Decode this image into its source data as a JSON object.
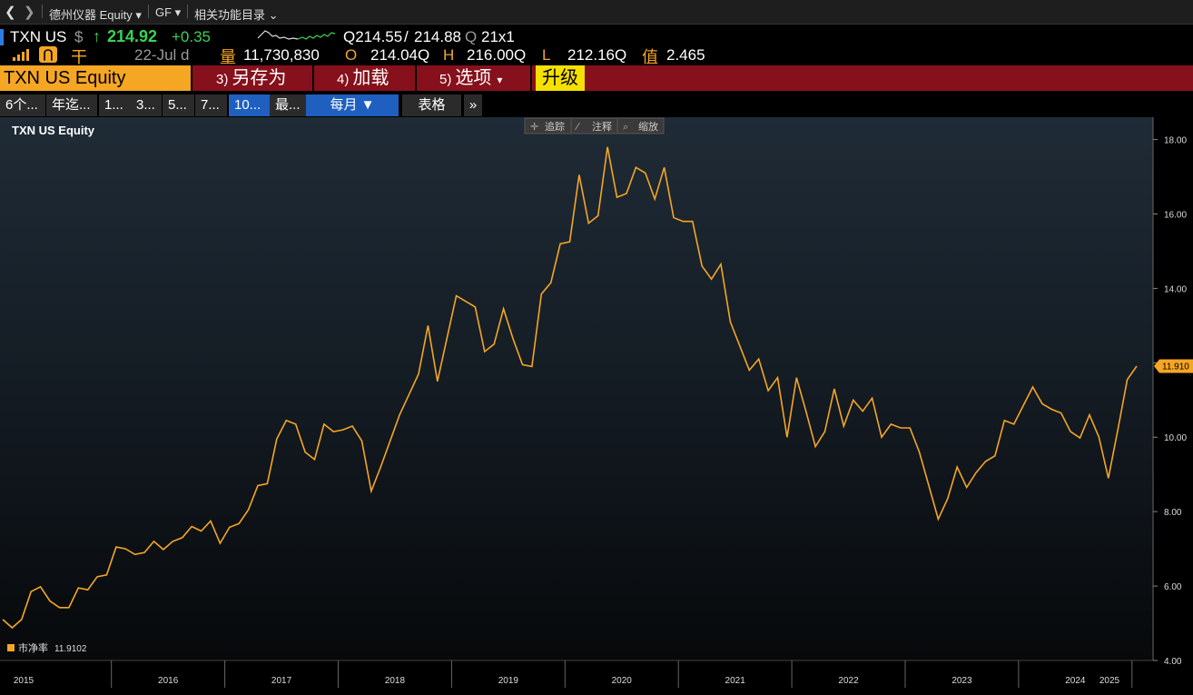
{
  "nav": {
    "title": "德州仪器 Equity",
    "fund": "GF",
    "menu": "相关功能目录"
  },
  "quote": {
    "ticker": "TXN US",
    "currency": "$",
    "arrow": "↑",
    "last": "214.92",
    "change": "+0.35",
    "bid": "Q214.55",
    "slash": "/",
    "ask": "214.88",
    "ask_flag": "Q",
    "size": "21x1",
    "date_label": "22-Jul d",
    "vol_label": "量",
    "volume": "11,730,830",
    "open_label": "O",
    "open": "214.04Q",
    "high_label": "H",
    "high": "216.00Q",
    "low_label": "L",
    "low": "212.16Q",
    "value_label": "值",
    "value": "2.465",
    "currency_glyph": "干",
    "accent": "#f5a623",
    "up_color": "#39d353"
  },
  "funcbar": {
    "security": "TXN US Equity",
    "b3_num": "3)",
    "b3_label": "另存为",
    "b4_num": "4)",
    "b4_label": "加载",
    "b5_num": "5)",
    "b5_label": "选项",
    "upgrade": "升级"
  },
  "tabs": {
    "items": [
      "6个...",
      "年迄...",
      "1...",
      "3...",
      "5...",
      "7...",
      "10...",
      "最..."
    ],
    "freq": "每月 ▼",
    "table": "表格",
    "more": "»",
    "active_index": 6
  },
  "chart_tools": {
    "track": "追踪",
    "annotate": "注释",
    "zoom": "缩放"
  },
  "legend": {
    "label": "市净率",
    "value": "11.9102"
  },
  "chart_data": {
    "type": "line",
    "title": "TXN US Equity",
    "series": [
      {
        "name": "市净率",
        "color": "#f5a623",
        "values": [
          5.1,
          4.88,
          5.1,
          5.85,
          5.98,
          5.6,
          5.42,
          5.42,
          5.95,
          5.9,
          6.25,
          6.3,
          7.05,
          7.0,
          6.85,
          6.9,
          7.2,
          6.98,
          7.2,
          7.3,
          7.6,
          7.48,
          7.75,
          7.15,
          7.58,
          7.68,
          8.05,
          8.7,
          8.75,
          9.95,
          10.45,
          10.35,
          9.6,
          9.4,
          10.35,
          10.15,
          10.2,
          10.3,
          9.9,
          8.55,
          9.2,
          9.9,
          10.6,
          11.15,
          11.7,
          13.0,
          11.5,
          12.65,
          13.8,
          13.65,
          13.5,
          12.3,
          12.5,
          13.45,
          12.65,
          11.95,
          11.9,
          13.85,
          14.15,
          15.2,
          15.25,
          17.05,
          15.75,
          15.95,
          17.8,
          16.45,
          16.55,
          17.25,
          17.1,
          16.4,
          17.25,
          15.9,
          15.8,
          15.8,
          14.6,
          14.25,
          14.65,
          13.1,
          12.45,
          11.8,
          12.1,
          11.25,
          11.6,
          10.0,
          11.6,
          10.7,
          9.75,
          10.15,
          11.3,
          10.3,
          11.0,
          10.7,
          11.05,
          10.0,
          10.35,
          10.25,
          10.25,
          9.6,
          8.7,
          7.8,
          8.35,
          9.2,
          8.65,
          9.05,
          9.35,
          9.5,
          10.45,
          10.35,
          10.85,
          11.35,
          10.9,
          10.75,
          10.65,
          10.15,
          9.98,
          10.6,
          10.0,
          8.9,
          10.2,
          11.55,
          11.91
        ]
      }
    ],
    "x_start": "2015-01",
    "x_end": "2025-01",
    "x_ticks": [
      "2015",
      "2016",
      "2017",
      "2018",
      "2019",
      "2020",
      "2021",
      "2022",
      "2023",
      "2024",
      "2025"
    ],
    "y_ticks": [
      "4.00",
      "6.00",
      "8.00",
      "10.00",
      "12.00",
      "14.00",
      "16.00",
      "18.00"
    ],
    "ylim": [
      4,
      18.6
    ],
    "last_label": "11.910",
    "grid": false,
    "legend_position": "bottom-left"
  }
}
